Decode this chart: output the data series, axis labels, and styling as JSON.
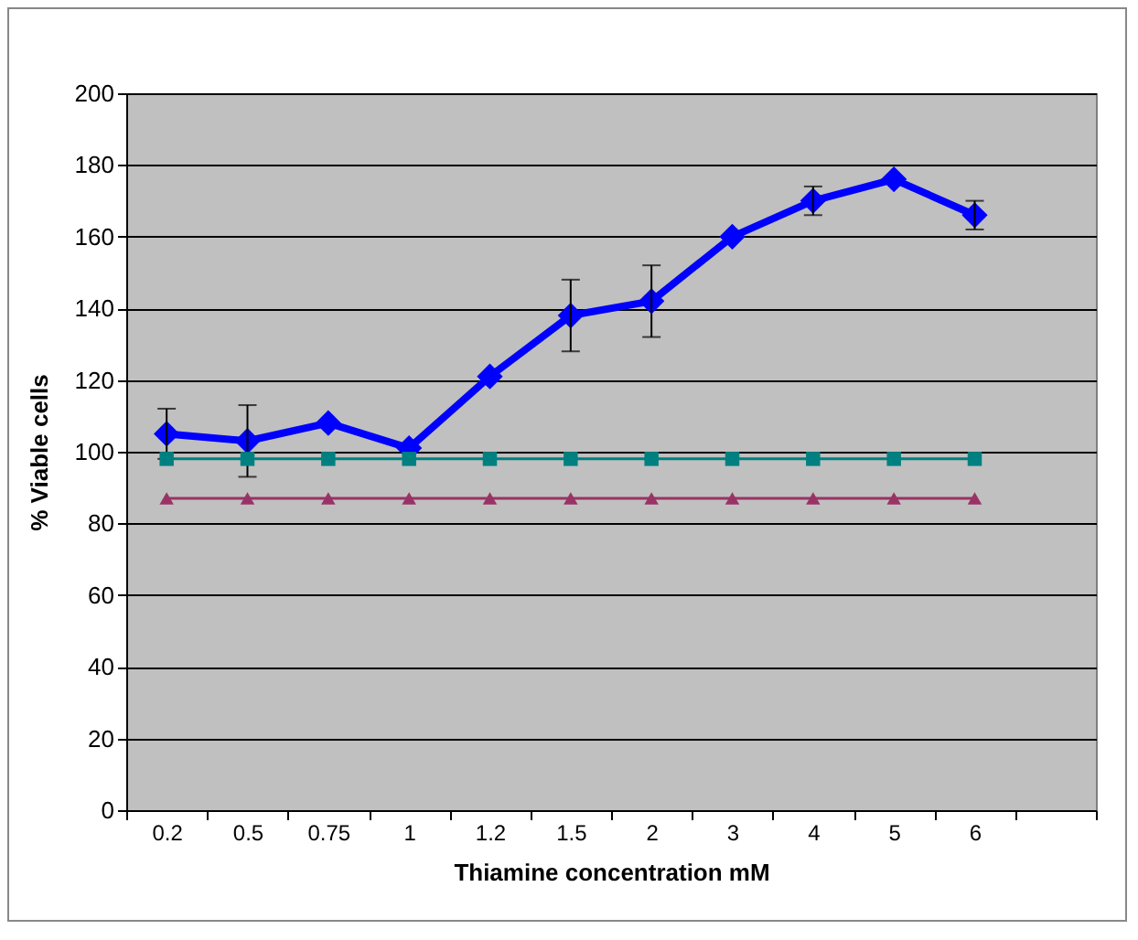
{
  "chart_data": {
    "type": "line",
    "xlabel": "Thiamine concentration mM",
    "ylabel": "% Viable cells",
    "categories": [
      "0.2",
      "0.5",
      "0.75",
      "1",
      "1.2",
      "1.5",
      "2",
      "3",
      "4",
      "5",
      "6",
      null
    ],
    "ylim": [
      0,
      200
    ],
    "yticks": [
      0,
      20,
      40,
      60,
      80,
      100,
      120,
      140,
      160,
      180,
      200
    ],
    "grid": "y",
    "series": [
      {
        "color": "#0000ff",
        "marker": "diamond",
        "values": [
          105,
          103,
          108,
          101,
          121,
          138,
          142,
          160,
          170,
          176,
          166,
          null
        ],
        "errors": [
          7,
          10,
          null,
          null,
          null,
          10,
          10,
          null,
          4,
          null,
          4,
          null
        ]
      },
      {
        "color": "#008080",
        "marker": "square",
        "values": [
          98,
          98,
          98,
          98,
          98,
          98,
          98,
          98,
          98,
          98,
          98,
          null
        ]
      },
      {
        "color": "#993366",
        "marker": "triangle",
        "values": [
          87,
          87,
          87,
          87,
          87,
          87,
          87,
          87,
          87,
          87,
          87,
          null
        ]
      }
    ]
  }
}
